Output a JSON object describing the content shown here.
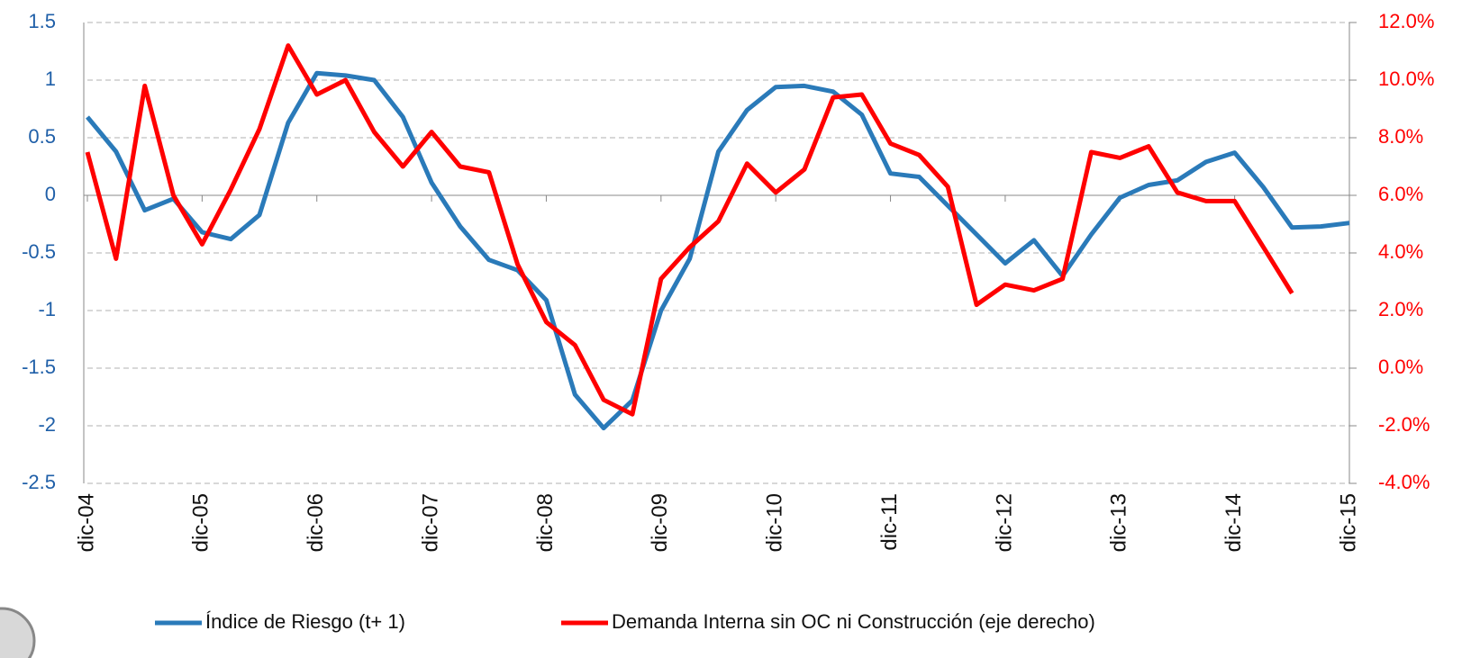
{
  "chart_data": {
    "type": "line",
    "categories": [
      "dic-04",
      null,
      null,
      null,
      "dic-05",
      null,
      null,
      null,
      "dic-06",
      null,
      null,
      null,
      "dic-07",
      null,
      null,
      null,
      "dic-08",
      null,
      null,
      null,
      "dic-09",
      null,
      null,
      null,
      "dic-10",
      null,
      null,
      null,
      "dic-11",
      null,
      null,
      null,
      "dic-12",
      null,
      null,
      null,
      "dic-13",
      null,
      null,
      null,
      "dic-14",
      null,
      null,
      null,
      "dic-15"
    ],
    "series": [
      {
        "name": "Índice de Riesgo (t+ 1)",
        "color": "#2a7ab9",
        "values": [
          0.68,
          0.38,
          -0.13,
          -0.03,
          -0.32,
          -0.38,
          -0.17,
          0.63,
          1.06,
          1.04,
          1.0,
          0.68,
          0.11,
          -0.27,
          -0.56,
          -0.65,
          -0.91,
          -1.73,
          -2.02,
          -1.78,
          -1.0,
          -0.55,
          0.38,
          0.74,
          0.94,
          0.95,
          0.9,
          0.7,
          0.19,
          0.16,
          -0.09,
          -0.34,
          -0.59,
          -0.39,
          -0.7,
          -0.34,
          -0.02,
          0.09,
          0.13,
          0.29,
          0.37,
          0.07,
          -0.28,
          -0.27,
          -0.24
        ]
      },
      {
        "name": "Demanda Interna sin OC ni Construcción (eje derecho)",
        "color": "#ff0000",
        "axis": "y2",
        "values": [
          7.5,
          3.8,
          9.8,
          6.0,
          4.3,
          6.2,
          8.3,
          11.2,
          9.5,
          10.0,
          8.2,
          7.0,
          8.2,
          7.0,
          6.8,
          3.6,
          1.6,
          0.8,
          -1.1,
          -1.6,
          3.1,
          4.2,
          5.1,
          7.1,
          6.1,
          6.9,
          9.4,
          9.5,
          7.8,
          7.4,
          6.3,
          2.2,
          2.9,
          2.7,
          3.1,
          7.5,
          7.3,
          7.7,
          6.1,
          5.8,
          5.8,
          4.2,
          2.6,
          null,
          null
        ]
      }
    ],
    "ylim": [
      -2.5,
      1.5
    ],
    "yticks": [
      1.5,
      1,
      0.5,
      0,
      -0.5,
      -1,
      -1.5,
      -2,
      -2.5
    ],
    "y2lim": [
      -4,
      12
    ],
    "y2ticks": [
      {
        "value": 12,
        "label": "12.0%"
      },
      {
        "value": 10,
        "label": "10.0%"
      },
      {
        "value": 8,
        "label": "8.0%"
      },
      {
        "value": 6,
        "label": "6.0%"
      },
      {
        "value": 4,
        "label": "4.0%"
      },
      {
        "value": 2,
        "label": "2.0%"
      },
      {
        "value": 0,
        "label": "0.0%"
      },
      {
        "value": -2,
        "label": "-2.0%"
      },
      {
        "value": -4,
        "label": "-4.0%"
      }
    ],
    "grid": true,
    "legend": "bottom"
  }
}
